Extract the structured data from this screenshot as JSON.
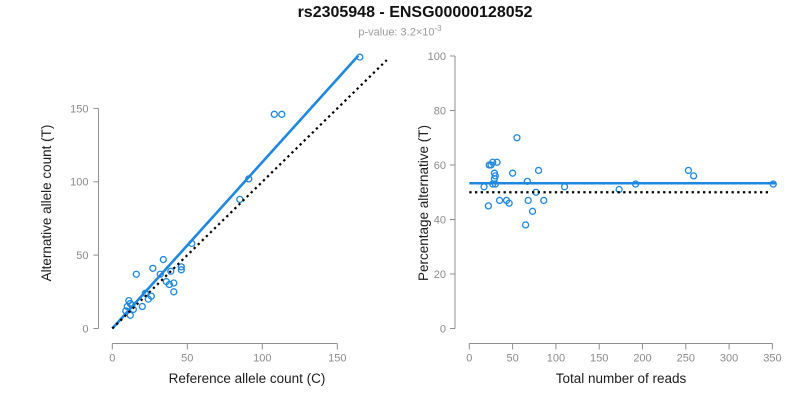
{
  "header": {
    "title": "rs2305948 - ENSG00000128052",
    "pvalue_prefix": "p-value: 3.2×10",
    "pvalue_exponent": "-3"
  },
  "colors": {
    "accent_blue": "#1E87E0",
    "reference_black": "#000000",
    "axis_line": "#909090",
    "tick_label": "#8A8A8A",
    "axis_title": "#1C1C1C",
    "subtitle": "#9B9B9B"
  },
  "chart_data": [
    {
      "type": "scatter",
      "title": "",
      "xlabel": "Reference allele count (C)",
      "ylabel": "Alternative allele count (T)",
      "xlim": [
        0,
        185
      ],
      "ylim": [
        0,
        190
      ],
      "xticks": [
        0,
        50,
        100,
        150
      ],
      "yticks": [
        0,
        50,
        100,
        150
      ],
      "grid": false,
      "legend": "none",
      "points": [
        [
          9,
          12
        ],
        [
          10,
          15
        ],
        [
          11,
          19
        ],
        [
          12,
          9
        ],
        [
          12,
          17
        ],
        [
          13,
          16
        ],
        [
          14,
          13
        ],
        [
          16,
          37
        ],
        [
          20,
          15
        ],
        [
          22,
          24
        ],
        [
          24,
          20
        ],
        [
          26,
          22
        ],
        [
          27,
          41
        ],
        [
          32,
          37
        ],
        [
          34,
          47
        ],
        [
          36,
          32
        ],
        [
          38,
          30
        ],
        [
          39,
          39
        ],
        [
          41,
          25
        ],
        [
          41,
          31
        ],
        [
          46,
          40
        ],
        [
          46,
          42
        ],
        [
          53,
          58
        ],
        [
          85,
          88
        ],
        [
          91,
          102
        ],
        [
          108,
          146
        ],
        [
          113,
          146
        ],
        [
          165,
          185
        ]
      ],
      "lines": [
        {
          "name": "fit-line",
          "x1": 0,
          "y1": 0,
          "x2": 164,
          "y2": 186,
          "style": "solid",
          "color": "#1E87E0"
        },
        {
          "name": "identity-line",
          "x1": 0,
          "y1": 0,
          "x2": 183,
          "y2": 183,
          "style": "dotted",
          "color": "#000000"
        }
      ]
    },
    {
      "type": "scatter",
      "title": "",
      "xlabel": "Total number of reads",
      "ylabel": "Percentage alternative (T)",
      "xlim": [
        0,
        360
      ],
      "ylim": [
        0,
        100
      ],
      "xticks": [
        0,
        50,
        100,
        150,
        200,
        250,
        300,
        350
      ],
      "yticks": [
        0,
        20,
        40,
        60,
        80,
        100
      ],
      "grid": false,
      "legend": "none",
      "points": [
        [
          17,
          52
        ],
        [
          22,
          45
        ],
        [
          23,
          60
        ],
        [
          25,
          60
        ],
        [
          27,
          61
        ],
        [
          27,
          53
        ],
        [
          29,
          57
        ],
        [
          29,
          55
        ],
        [
          30,
          56
        ],
        [
          30,
          53
        ],
        [
          32,
          61
        ],
        [
          35,
          47
        ],
        [
          43,
          47
        ],
        [
          46,
          46
        ],
        [
          50,
          57
        ],
        [
          55,
          70
        ],
        [
          65,
          38
        ],
        [
          67,
          54
        ],
        [
          68,
          47
        ],
        [
          73,
          43
        ],
        [
          77,
          50
        ],
        [
          80,
          58
        ],
        [
          86,
          47
        ],
        [
          110,
          52
        ],
        [
          173,
          51
        ],
        [
          192,
          53
        ],
        [
          253,
          58
        ],
        [
          259,
          56
        ],
        [
          351,
          53
        ]
      ],
      "lines": [
        {
          "name": "mean-percentage-line",
          "x1": 0,
          "y1": 53.3,
          "x2": 354,
          "y2": 53.3,
          "style": "solid",
          "color": "#1E87E0"
        },
        {
          "name": "fifty-percent-line",
          "x1": 0,
          "y1": 50,
          "x2": 345,
          "y2": 50,
          "style": "dotted",
          "color": "#000000"
        }
      ]
    }
  ]
}
